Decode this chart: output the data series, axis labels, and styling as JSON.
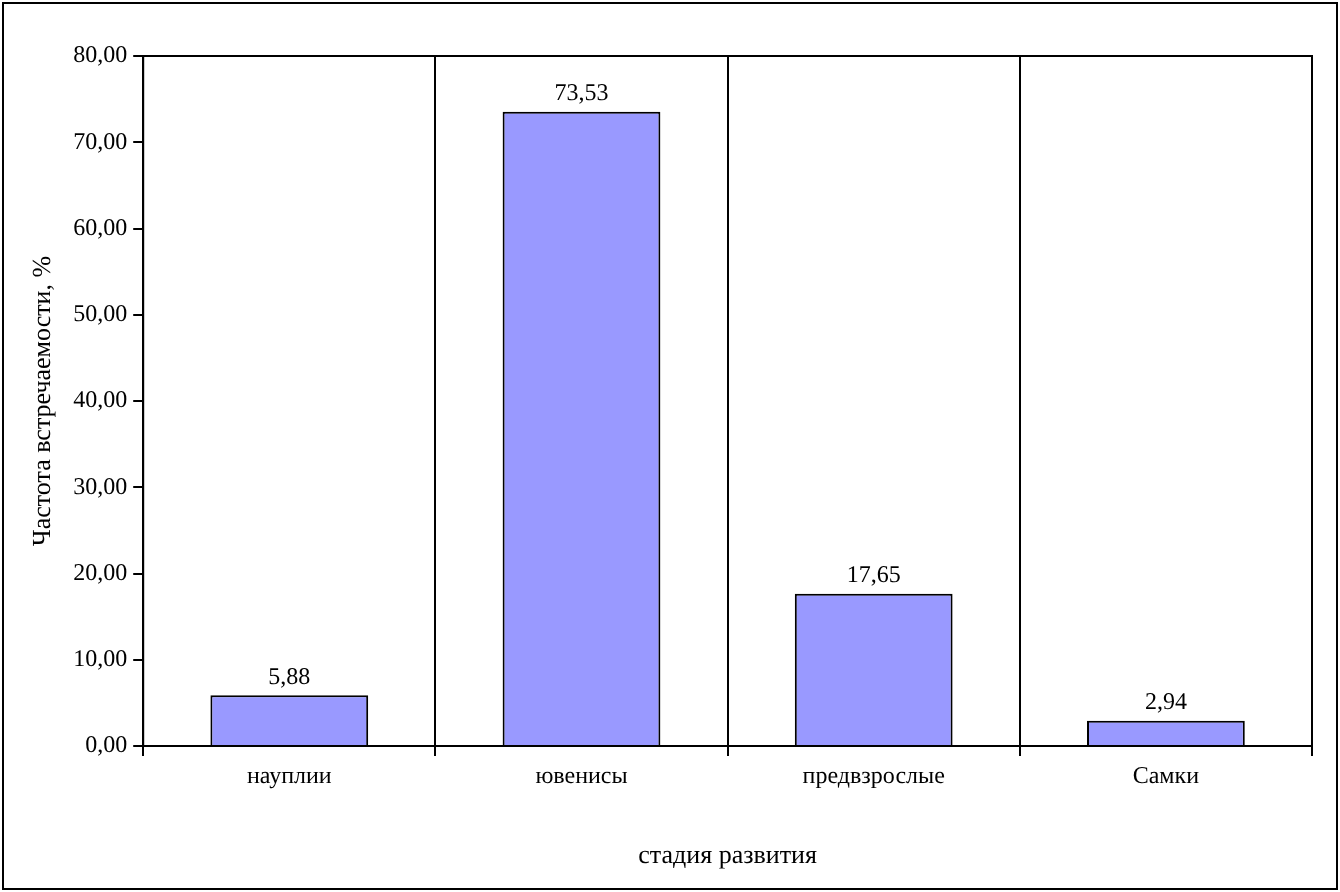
{
  "chart_data": {
    "type": "bar",
    "xlabel": "стадия развития",
    "ylabel": "Частота встречаемости, %",
    "categories": [
      "науплии",
      "ювенисы",
      "предвзрослые",
      "Самки"
    ],
    "values": [
      5.88,
      73.53,
      17.65,
      2.94
    ],
    "value_labels": [
      "5,88",
      "73,53",
      "17,65",
      "2,94"
    ],
    "color": "#9999ff",
    "ylim": [
      0,
      80
    ],
    "yticks": [
      {
        "value": 0,
        "label": "0,00"
      },
      {
        "value": 10,
        "label": "10,00"
      },
      {
        "value": 20,
        "label": "20,00"
      },
      {
        "value": 30,
        "label": "30,00"
      },
      {
        "value": 40,
        "label": "40,00"
      },
      {
        "value": 50,
        "label": "50,00"
      },
      {
        "value": 60,
        "label": "60,00"
      },
      {
        "value": 70,
        "label": "70,00"
      },
      {
        "value": 80,
        "label": "80,00"
      }
    ],
    "grid": "x",
    "legend": false
  }
}
